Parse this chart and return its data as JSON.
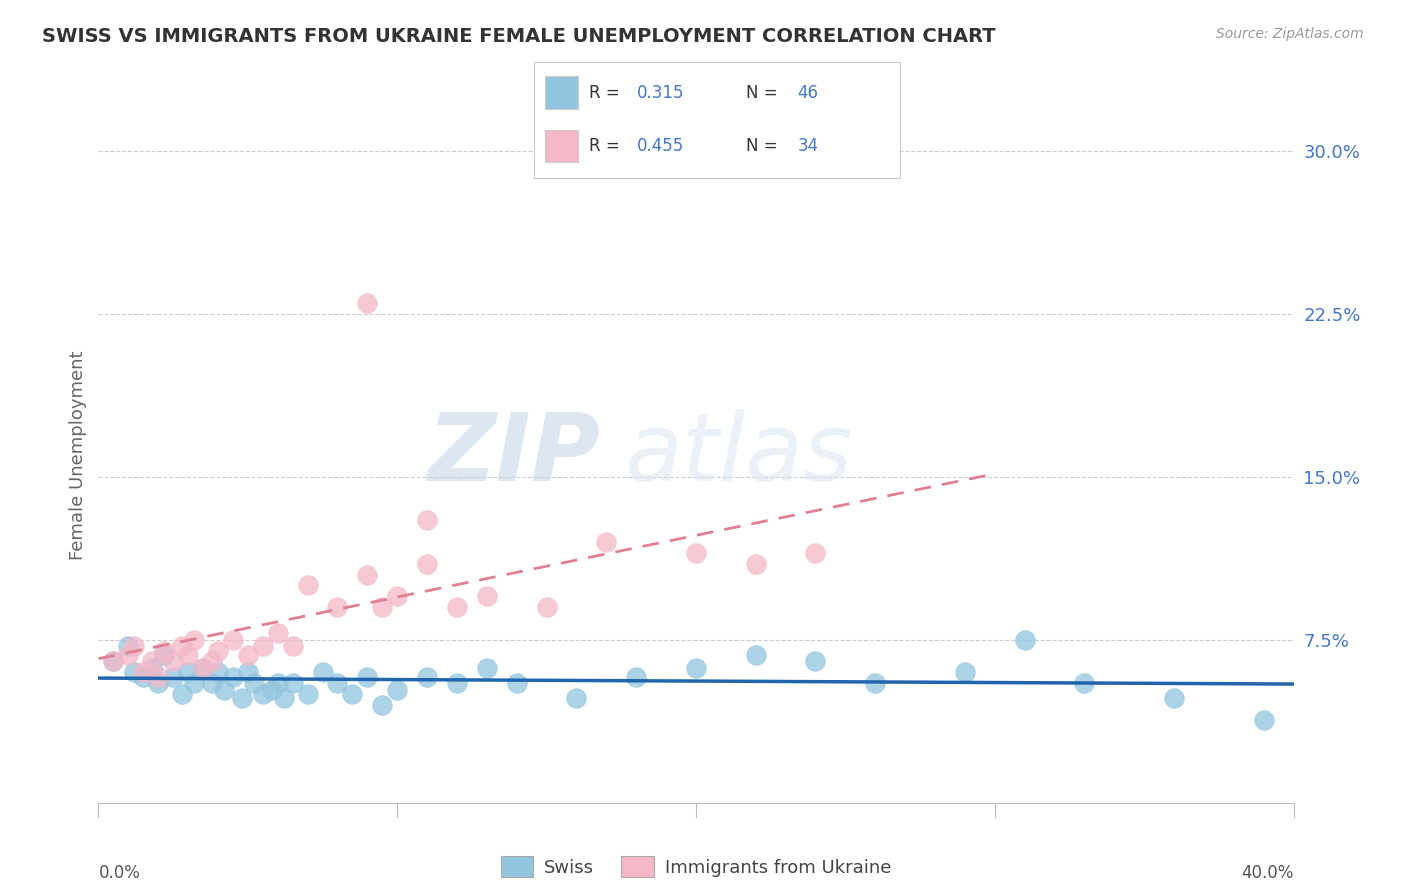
{
  "title": "SWISS VS IMMIGRANTS FROM UKRAINE FEMALE UNEMPLOYMENT CORRELATION CHART",
  "source": "Source: ZipAtlas.com",
  "ylabel": "Female Unemployment",
  "xmin": 0.0,
  "xmax": 0.4,
  "ymin": 0.0,
  "ymax": 0.32,
  "yticks": [
    0.075,
    0.15,
    0.225,
    0.3
  ],
  "ytick_labels": [
    "7.5%",
    "15.0%",
    "22.5%",
    "30.0%"
  ],
  "r_swiss": 0.315,
  "n_swiss": 46,
  "r_ukraine": 0.455,
  "n_ukraine": 34,
  "swiss_color": "#92c5de",
  "ukraine_color": "#f4b8c8",
  "swiss_line_color": "#2166ac",
  "ukraine_line_color": "#d6604d",
  "watermark_zip": "ZIP",
  "watermark_atlas": "atlas",
  "legend_labels": [
    "Swiss",
    "Immigrants from Ukraine"
  ],
  "swiss_x": [
    0.005,
    0.01,
    0.012,
    0.015,
    0.018,
    0.02,
    0.022,
    0.025,
    0.028,
    0.03,
    0.032,
    0.035,
    0.038,
    0.04,
    0.042,
    0.045,
    0.048,
    0.05,
    0.052,
    0.055,
    0.058,
    0.06,
    0.062,
    0.065,
    0.07,
    0.075,
    0.08,
    0.085,
    0.09,
    0.095,
    0.1,
    0.11,
    0.12,
    0.13,
    0.14,
    0.16,
    0.18,
    0.2,
    0.22,
    0.24,
    0.26,
    0.29,
    0.31,
    0.33,
    0.36,
    0.39
  ],
  "swiss_y": [
    0.065,
    0.072,
    0.06,
    0.058,
    0.062,
    0.055,
    0.068,
    0.058,
    0.05,
    0.06,
    0.055,
    0.062,
    0.055,
    0.06,
    0.052,
    0.058,
    0.048,
    0.06,
    0.055,
    0.05,
    0.052,
    0.055,
    0.048,
    0.055,
    0.05,
    0.06,
    0.055,
    0.05,
    0.058,
    0.045,
    0.052,
    0.058,
    0.055,
    0.062,
    0.055,
    0.048,
    0.058,
    0.062,
    0.068,
    0.065,
    0.055,
    0.06,
    0.075,
    0.055,
    0.048,
    0.038
  ],
  "ukraine_x": [
    0.005,
    0.01,
    0.012,
    0.015,
    0.018,
    0.02,
    0.022,
    0.025,
    0.028,
    0.03,
    0.032,
    0.035,
    0.038,
    0.04,
    0.045,
    0.05,
    0.055,
    0.06,
    0.065,
    0.07,
    0.08,
    0.09,
    0.1,
    0.11,
    0.13,
    0.15,
    0.17,
    0.2,
    0.22,
    0.24,
    0.11,
    0.12,
    0.09,
    0.095
  ],
  "ukraine_y": [
    0.065,
    0.068,
    0.072,
    0.06,
    0.065,
    0.058,
    0.07,
    0.065,
    0.072,
    0.068,
    0.075,
    0.062,
    0.065,
    0.07,
    0.075,
    0.068,
    0.072,
    0.078,
    0.072,
    0.1,
    0.09,
    0.105,
    0.095,
    0.11,
    0.095,
    0.09,
    0.12,
    0.115,
    0.11,
    0.115,
    0.13,
    0.09,
    0.23,
    0.09
  ]
}
